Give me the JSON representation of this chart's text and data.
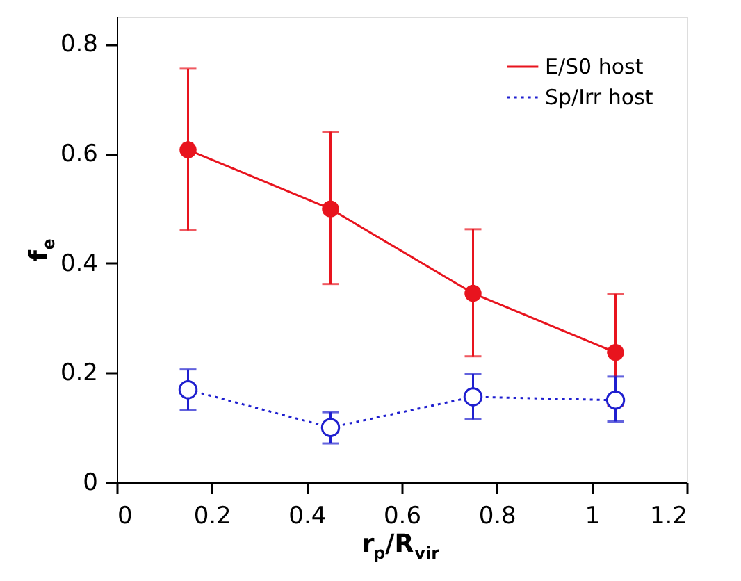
{
  "chart_data": {
    "type": "line",
    "xlabel": "r$_{p}$/R$_{vir}$",
    "ylabel": "f$_{e}$",
    "x": [
      0.15,
      0.45,
      0.75,
      1.05
    ],
    "series": [
      {
        "name": "E/S0 host",
        "color": "#e8141e",
        "values": [
          0.607,
          0.499,
          0.345,
          0.237
        ],
        "errors": [
          [
            0.46,
            0.755
          ],
          [
            0.362,
            0.64
          ],
          [
            0.23,
            0.462
          ],
          [
            0.14,
            0.344
          ]
        ],
        "line_style": "solid",
        "marker": "circle"
      },
      {
        "name": "Sp/Irr host",
        "color": "#1f1fcf",
        "values": [
          0.169,
          0.1,
          0.156,
          0.15
        ],
        "errors": [
          [
            0.132,
            0.206
          ],
          [
            0.071,
            0.128
          ],
          [
            0.115,
            0.198
          ],
          [
            0.111,
            0.193
          ]
        ],
        "line_style": "dotted",
        "marker": "circle"
      }
    ],
    "xlim": [
      0,
      1.2
    ],
    "xticks": [
      0,
      0.2,
      0.4,
      0.6,
      0.8,
      1,
      1.2
    ],
    "ylim": [
      0,
      0.85
    ],
    "yticks": [
      0,
      0.2,
      0.4,
      0.6,
      0.8
    ],
    "grid": false,
    "legend": "top right"
  }
}
